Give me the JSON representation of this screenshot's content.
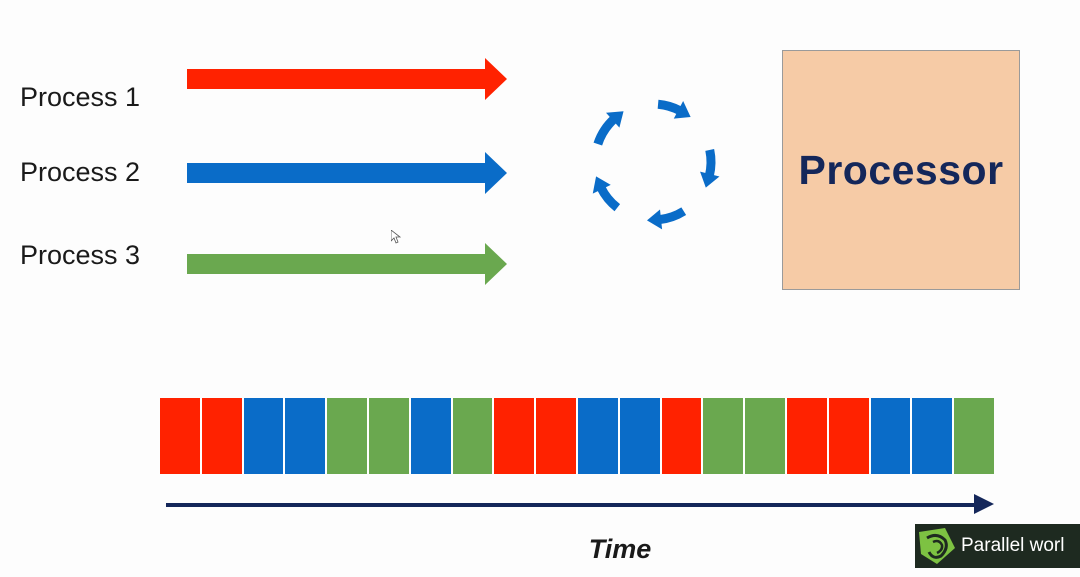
{
  "processes": [
    {
      "label": "Process 1",
      "color": "#ff2200"
    },
    {
      "label": "Process 2",
      "color": "#0a6cc8"
    },
    {
      "label": "Process 3",
      "color": "#6aa84f"
    }
  ],
  "processor": {
    "label": "Processor",
    "fill_color": "#f6cba6",
    "text_color": "#14275a"
  },
  "cycle_icon": {
    "name": "circular-arrows-icon",
    "color": "#0a6cc8"
  },
  "timeline": {
    "slots": [
      1,
      1,
      2,
      2,
      3,
      3,
      2,
      3,
      1,
      1,
      2,
      2,
      1,
      3,
      3,
      1,
      1,
      2,
      2,
      3
    ]
  },
  "time_axis": {
    "label": "Time",
    "color": "#14275a"
  },
  "watermark": {
    "text": "Parallel worl",
    "highlight_color": "#7dc242"
  },
  "cursor": {
    "icon": "mouse-pointer-icon"
  }
}
